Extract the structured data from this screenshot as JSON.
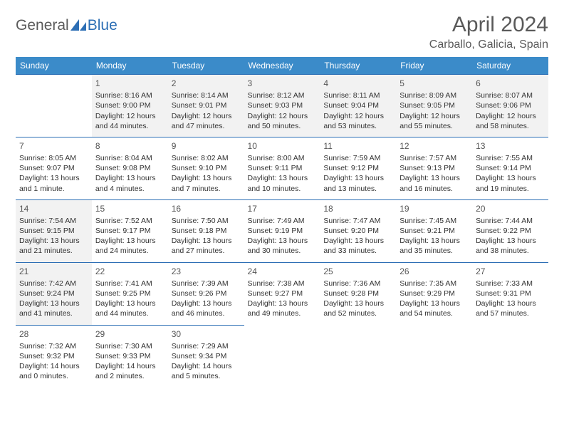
{
  "logo": {
    "text1": "General",
    "text2": "Blue"
  },
  "title": "April 2024",
  "location": "Carballo, Galicia, Spain",
  "style": {
    "header_bg": "#3b8bc9",
    "header_text": "#ffffff",
    "border_color": "#2d6fb5",
    "shaded_bg": "#f2f2f2",
    "brand_gray": "#5a5a5a",
    "brand_blue": "#2d6fb5",
    "body_text": "#333333",
    "font_family": "Arial",
    "title_fontsize": 30,
    "location_fontsize": 16,
    "header_fontsize": 12,
    "cell_fontsize": 10.5
  },
  "weekdays": [
    "Sunday",
    "Monday",
    "Tuesday",
    "Wednesday",
    "Thursday",
    "Friday",
    "Saturday"
  ],
  "weeks": [
    [
      null,
      {
        "d": "1",
        "sr": "8:16 AM",
        "ss": "9:00 PM",
        "dl": "12 hours and 44 minutes."
      },
      {
        "d": "2",
        "sr": "8:14 AM",
        "ss": "9:01 PM",
        "dl": "12 hours and 47 minutes."
      },
      {
        "d": "3",
        "sr": "8:12 AM",
        "ss": "9:03 PM",
        "dl": "12 hours and 50 minutes."
      },
      {
        "d": "4",
        "sr": "8:11 AM",
        "ss": "9:04 PM",
        "dl": "12 hours and 53 minutes."
      },
      {
        "d": "5",
        "sr": "8:09 AM",
        "ss": "9:05 PM",
        "dl": "12 hours and 55 minutes."
      },
      {
        "d": "6",
        "sr": "8:07 AM",
        "ss": "9:06 PM",
        "dl": "12 hours and 58 minutes."
      }
    ],
    [
      {
        "d": "7",
        "sr": "8:05 AM",
        "ss": "9:07 PM",
        "dl": "13 hours and 1 minute."
      },
      {
        "d": "8",
        "sr": "8:04 AM",
        "ss": "9:08 PM",
        "dl": "13 hours and 4 minutes."
      },
      {
        "d": "9",
        "sr": "8:02 AM",
        "ss": "9:10 PM",
        "dl": "13 hours and 7 minutes."
      },
      {
        "d": "10",
        "sr": "8:00 AM",
        "ss": "9:11 PM",
        "dl": "13 hours and 10 minutes."
      },
      {
        "d": "11",
        "sr": "7:59 AM",
        "ss": "9:12 PM",
        "dl": "13 hours and 13 minutes."
      },
      {
        "d": "12",
        "sr": "7:57 AM",
        "ss": "9:13 PM",
        "dl": "13 hours and 16 minutes."
      },
      {
        "d": "13",
        "sr": "7:55 AM",
        "ss": "9:14 PM",
        "dl": "13 hours and 19 minutes."
      }
    ],
    [
      {
        "d": "14",
        "sr": "7:54 AM",
        "ss": "9:15 PM",
        "dl": "13 hours and 21 minutes."
      },
      {
        "d": "15",
        "sr": "7:52 AM",
        "ss": "9:17 PM",
        "dl": "13 hours and 24 minutes."
      },
      {
        "d": "16",
        "sr": "7:50 AM",
        "ss": "9:18 PM",
        "dl": "13 hours and 27 minutes."
      },
      {
        "d": "17",
        "sr": "7:49 AM",
        "ss": "9:19 PM",
        "dl": "13 hours and 30 minutes."
      },
      {
        "d": "18",
        "sr": "7:47 AM",
        "ss": "9:20 PM",
        "dl": "13 hours and 33 minutes."
      },
      {
        "d": "19",
        "sr": "7:45 AM",
        "ss": "9:21 PM",
        "dl": "13 hours and 35 minutes."
      },
      {
        "d": "20",
        "sr": "7:44 AM",
        "ss": "9:22 PM",
        "dl": "13 hours and 38 minutes."
      }
    ],
    [
      {
        "d": "21",
        "sr": "7:42 AM",
        "ss": "9:24 PM",
        "dl": "13 hours and 41 minutes."
      },
      {
        "d": "22",
        "sr": "7:41 AM",
        "ss": "9:25 PM",
        "dl": "13 hours and 44 minutes."
      },
      {
        "d": "23",
        "sr": "7:39 AM",
        "ss": "9:26 PM",
        "dl": "13 hours and 46 minutes."
      },
      {
        "d": "24",
        "sr": "7:38 AM",
        "ss": "9:27 PM",
        "dl": "13 hours and 49 minutes."
      },
      {
        "d": "25",
        "sr": "7:36 AM",
        "ss": "9:28 PM",
        "dl": "13 hours and 52 minutes."
      },
      {
        "d": "26",
        "sr": "7:35 AM",
        "ss": "9:29 PM",
        "dl": "13 hours and 54 minutes."
      },
      {
        "d": "27",
        "sr": "7:33 AM",
        "ss": "9:31 PM",
        "dl": "13 hours and 57 minutes."
      }
    ],
    [
      {
        "d": "28",
        "sr": "7:32 AM",
        "ss": "9:32 PM",
        "dl": "14 hours and 0 minutes."
      },
      {
        "d": "29",
        "sr": "7:30 AM",
        "ss": "9:33 PM",
        "dl": "14 hours and 2 minutes."
      },
      {
        "d": "30",
        "sr": "7:29 AM",
        "ss": "9:34 PM",
        "dl": "14 hours and 5 minutes."
      },
      null,
      null,
      null,
      null
    ]
  ],
  "labels": {
    "sunrise": "Sunrise:",
    "sunset": "Sunset:",
    "daylight": "Daylight:"
  }
}
